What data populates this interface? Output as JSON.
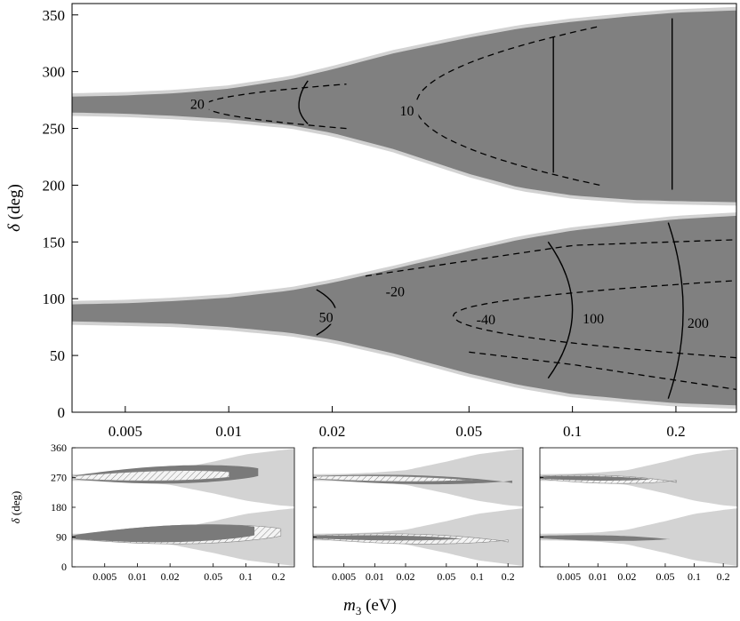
{
  "figure": {
    "xlabel_symbol": "m",
    "xlabel_sub": "3",
    "xlabel_unit": " (eV)"
  },
  "chart_data": [
    {
      "type": "area",
      "panel": "main",
      "ylabel_symbol": "δ",
      "ylabel_unit": " (deg)",
      "x_scale": "log",
      "xlim": [
        0.0035,
        0.3
      ],
      "ylim": [
        0,
        360
      ],
      "xticks": [
        0.005,
        0.01,
        0.02,
        0.05,
        0.1,
        0.2
      ],
      "xtick_labels": [
        "0.005",
        "0.01",
        "0.02",
        "0.05",
        "0.1",
        "0.2"
      ],
      "yticks": [
        0,
        50,
        100,
        150,
        200,
        250,
        300,
        350
      ],
      "ytick_labels": [
        "0",
        "50",
        "100",
        "150",
        "200",
        "250",
        "300",
        "350"
      ],
      "colors": {
        "outer_band": "#d2d2d2",
        "inner_band": "#808080",
        "contour": "#000000"
      },
      "bands": [
        {
          "name": "upper",
          "x": [
            0.0035,
            0.005,
            0.007,
            0.01,
            0.015,
            0.02,
            0.03,
            0.05,
            0.07,
            0.1,
            0.15,
            0.2,
            0.3
          ],
          "upper": [
            278,
            279,
            281,
            285,
            293,
            302,
            316,
            330,
            338,
            344,
            349,
            352,
            354
          ],
          "lower": [
            264,
            263,
            261,
            258,
            253,
            246,
            232,
            210,
            198,
            191,
            187,
            186,
            185
          ]
        },
        {
          "name": "lower",
          "x": [
            0.0035,
            0.005,
            0.007,
            0.01,
            0.015,
            0.02,
            0.03,
            0.05,
            0.07,
            0.1,
            0.15,
            0.2,
            0.3
          ],
          "upper": [
            95,
            96,
            98,
            101,
            107,
            114,
            126,
            142,
            152,
            160,
            166,
            170,
            173
          ],
          "lower": [
            80,
            79,
            78,
            75,
            70,
            64,
            52,
            34,
            24,
            16,
            11,
            8,
            6
          ]
        }
      ],
      "dashed_contours": [
        {
          "label": "20",
          "x": [
            0.0085,
            0.017,
            0.022
          ],
          "y_upper": 289,
          "y_vertex": 270,
          "y_lower": 250
        },
        {
          "label": "10",
          "x": [
            0.035,
            0.09,
            0.12
          ],
          "y_upper": 340,
          "y_vertex": 270,
          "y_lower": 200
        },
        {
          "label": "-20",
          "x": [
            0.025,
            0.1,
            0.3
          ],
          "y": [
            120,
            147,
            152
          ]
        },
        {
          "label": "-40",
          "x": [
            0.045,
            0.1,
            0.3
          ],
          "y_upper": 116,
          "y_vertex": 85,
          "y_lower": 48
        },
        {
          "label": "",
          "x": [
            0.05,
            0.1,
            0.3
          ],
          "y": [
            53,
            42,
            20
          ]
        }
      ],
      "solid_contours": [
        {
          "label": "",
          "x_vertex": 0.016,
          "x_end": 0.017,
          "y_upper": 292,
          "y_vertex": 270,
          "y_lower": 254
        },
        {
          "label": "50",
          "x_vertex": 0.0205,
          "x_end": 0.018,
          "y_upper": 108,
          "y_vertex": 88,
          "y_lower": 68
        },
        {
          "label": "",
          "x": 0.088,
          "y_range": [
            211,
            331
          ]
        },
        {
          "label": "",
          "x": 0.195,
          "y_range": [
            196,
            347
          ]
        },
        {
          "label": "100",
          "x_top": 0.085,
          "x_mid": 0.1,
          "x_bot": 0.085,
          "y_range": [
            30,
            150
          ]
        },
        {
          "label": "200",
          "x_top": 0.19,
          "x_mid": 0.21,
          "x_bot": 0.19,
          "y_range": [
            12,
            167
          ]
        }
      ],
      "annotations": [
        "20",
        "10",
        "-20",
        "50",
        "-40",
        "100",
        "200"
      ]
    },
    {
      "type": "area",
      "panel": "bottom-left",
      "ylabel_symbol": "δ",
      "ylabel_unit": " (deg)",
      "x_scale": "log",
      "xlim": [
        0.0025,
        0.28
      ],
      "ylim": [
        0,
        360
      ],
      "xtick_labels": [
        "0.005",
        "0.01",
        "0.02",
        "0.05",
        "0.1",
        "0.2"
      ],
      "ytick_labels": [
        "0",
        "90",
        "180",
        "270",
        "360"
      ],
      "fills": [
        "light-gray band",
        "dark-gray region",
        "hatched region"
      ]
    },
    {
      "type": "area",
      "panel": "bottom-middle",
      "x_scale": "log",
      "xlim": [
        0.0025,
        0.28
      ],
      "ylim": [
        0,
        360
      ],
      "xtick_labels": [
        "0.005",
        "0.01",
        "0.02",
        "0.05",
        "0.1",
        "0.2"
      ],
      "fills": [
        "light-gray band",
        "dark-gray region",
        "hatched region"
      ]
    },
    {
      "type": "area",
      "panel": "bottom-right",
      "x_scale": "log",
      "xlim": [
        0.0025,
        0.28
      ],
      "ylim": [
        0,
        360
      ],
      "xtick_labels": [
        "0.005",
        "0.01",
        "0.02",
        "0.05",
        "0.1",
        "0.2"
      ],
      "fills": [
        "light-gray band",
        "dark-gray region",
        "hatched region"
      ]
    }
  ]
}
